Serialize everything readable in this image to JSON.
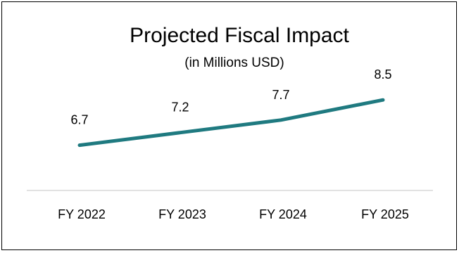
{
  "chart_data": {
    "type": "line",
    "title": "Projected Fiscal Impact",
    "subtitle": "(in Millions USD)",
    "categories": [
      "FY 2022",
      "FY 2023",
      "FY 2024",
      "FY 2025"
    ],
    "series": [
      {
        "values": [
          6.7,
          7.2,
          7.7,
          8.5
        ],
        "color": "#1F7A80"
      }
    ],
    "data_labels": [
      "6.7",
      "7.2",
      "7.7",
      "8.5"
    ],
    "ylim": [
      4.9,
      9.4
    ],
    "grid": false,
    "legend": "none"
  }
}
